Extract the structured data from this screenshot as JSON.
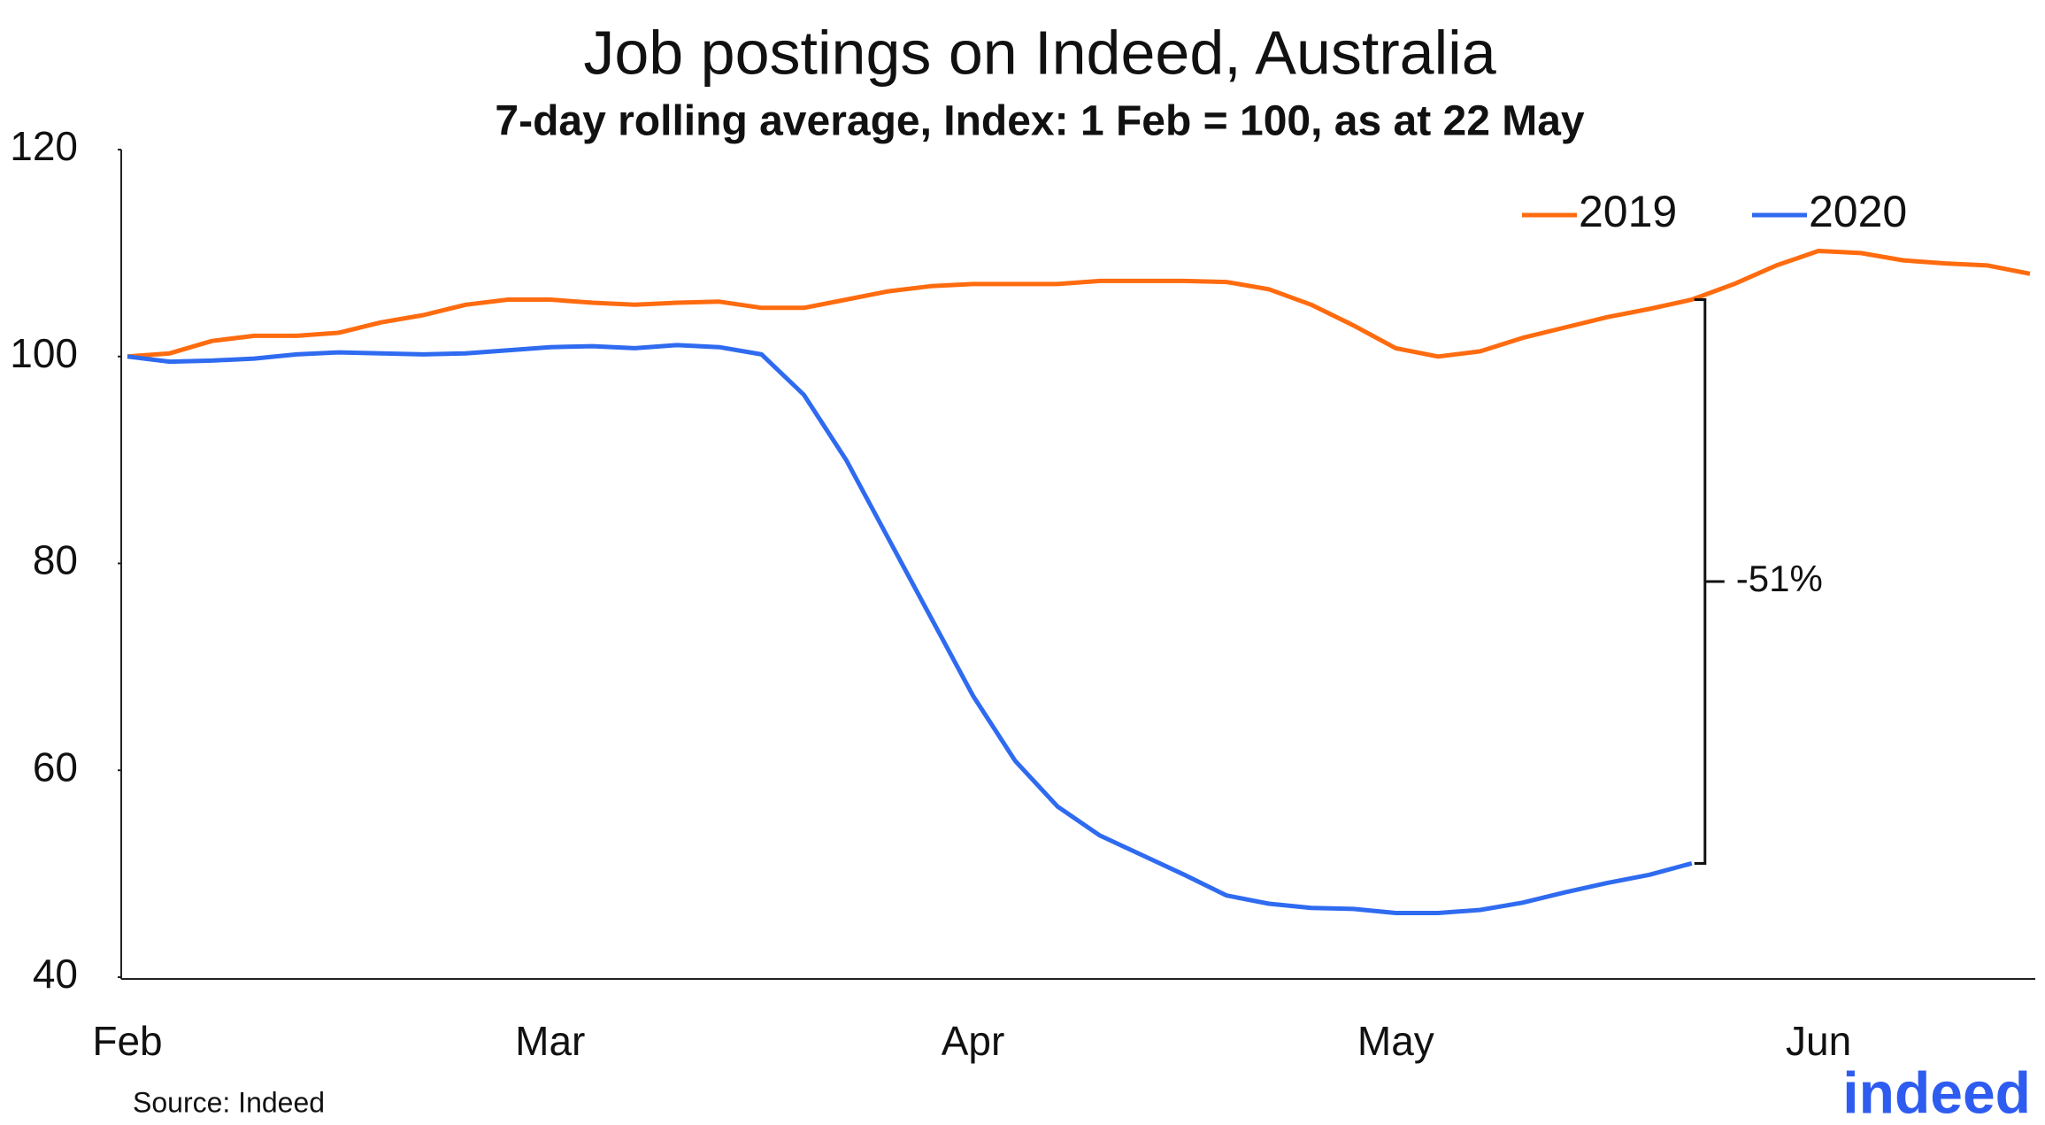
{
  "chart_data": {
    "type": "line",
    "title": "Job postings on Indeed, Australia",
    "subtitle": "7-day rolling average, Index: 1 Feb = 100, as at 22 May",
    "categories": [
      "Feb",
      null,
      null,
      null,
      null,
      null,
      null,
      null,
      null,
      null,
      "Mar",
      null,
      null,
      null,
      null,
      null,
      null,
      null,
      null,
      null,
      "Apr",
      null,
      null,
      null,
      null,
      null,
      null,
      null,
      null,
      null,
      "May",
      null,
      null,
      null,
      null,
      null,
      null,
      null,
      null,
      null,
      "Jun",
      null,
      null,
      null,
      null,
      null
    ],
    "series": [
      {
        "name": "2019",
        "color": "#ff6b0f",
        "values": [
          100,
          100.3,
          101.5,
          102,
          102,
          102.3,
          103.3,
          104,
          105,
          105.5,
          105.5,
          105.2,
          105,
          105.2,
          105.3,
          104.7,
          104.7,
          105.5,
          106.3,
          106.8,
          107,
          107,
          107,
          107.3,
          107.3,
          107.3,
          107.2,
          106.5,
          105,
          103,
          100.8,
          100,
          100.5,
          101.8,
          102.8,
          103.8,
          104.6,
          105.5,
          107,
          108.8,
          110.2,
          110,
          109.3,
          109,
          108.8,
          108
        ]
      },
      {
        "name": "2020",
        "color": "#2f6bf0",
        "values": [
          100,
          99.5,
          99.6,
          99.8,
          100.2,
          100.4,
          100.3,
          100.2,
          100.3,
          100.6,
          100.9,
          101,
          100.8,
          101.1,
          100.9,
          100.2,
          96.3,
          90,
          82.4,
          74.8,
          67.2,
          60.9,
          56.5,
          53.7,
          51.8,
          49.9,
          47.9,
          47.1,
          46.7,
          46.6,
          46.2,
          46.2,
          46.5,
          47.2,
          48.2,
          49.1,
          49.9,
          51,
          null,
          null,
          null,
          null,
          null,
          null,
          null,
          null
        ]
      }
    ],
    "ylim": [
      40,
      120
    ],
    "yticks": [
      40,
      60,
      80,
      100,
      120
    ],
    "grid": false,
    "legend": "upper right",
    "annotation": "-51%",
    "source": "Source: Indeed",
    "logo": "indeed"
  }
}
